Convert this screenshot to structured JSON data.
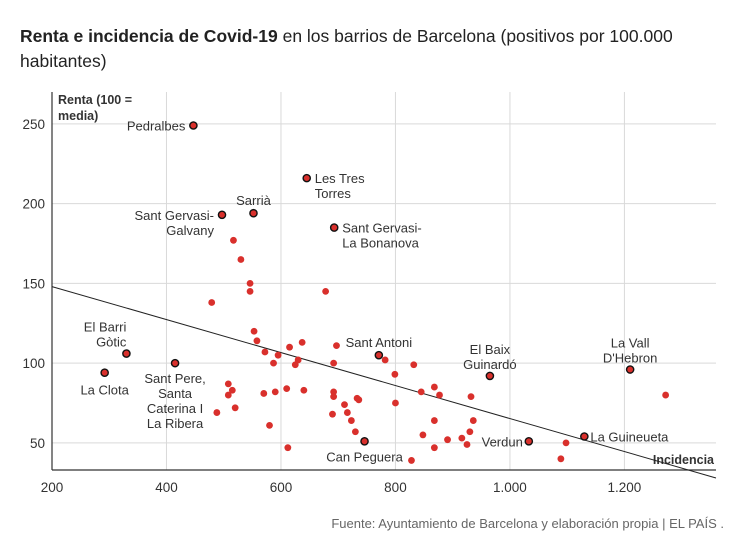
{
  "title_bold": "Renta e incidencia de Covid-19",
  "title_rest": " en los barrios de Barcelona (positivos por 100.000 habitantes)",
  "source": "Fuente: Ayuntamiento de Barcelona y elaboración propia | EL PAÍS .",
  "colors": {
    "point": "#d9302c",
    "grid": "#d9d9d9",
    "trend": "#222222"
  },
  "chart_data": {
    "type": "scatter",
    "xlabel": "Incidencia",
    "ylabel": [
      "Renta (100 =",
      "media)"
    ],
    "xlim": [
      200,
      1360
    ],
    "ylim": [
      33,
      270
    ],
    "xticks": [
      200,
      400,
      600,
      800,
      1000,
      1200
    ],
    "xtick_labels": [
      "200",
      "400",
      "600",
      "800",
      "1.000",
      "1.200"
    ],
    "yticks": [
      50,
      100,
      150,
      200,
      250
    ],
    "yticks_labels": [
      "50",
      "100",
      "150",
      "200",
      "250"
    ],
    "trend_line": {
      "x": [
        200,
        1360
      ],
      "y": [
        148,
        28
      ]
    },
    "labeled_points": [
      {
        "name": [
          "Pedralbes"
        ],
        "x": 447,
        "y": 249,
        "anchor": "end",
        "dx": -8,
        "dy": [
          5
        ]
      },
      {
        "name": [
          "Les Tres",
          "Torres"
        ],
        "x": 645,
        "y": 216,
        "anchor": "start",
        "dx": 8,
        "dy": [
          5,
          20
        ]
      },
      {
        "name": [
          "Sarrià"
        ],
        "x": 552,
        "y": 194,
        "anchor": "middle",
        "dx": 0,
        "dy": [
          -8
        ]
      },
      {
        "name": [
          "Sant Gervasi-",
          "Galvany"
        ],
        "x": 497,
        "y": 193,
        "anchor": "end",
        "dx": -8,
        "dy": [
          5,
          20
        ]
      },
      {
        "name": [
          "Sant Gervasi-",
          "La Bonanova"
        ],
        "x": 693,
        "y": 185,
        "anchor": "start",
        "dx": 8,
        "dy": [
          5,
          20
        ]
      },
      {
        "name": [
          "El Barri",
          "Gòtic"
        ],
        "x": 330,
        "y": 106,
        "anchor": "end",
        "dx": 0,
        "dy": [
          -22,
          -7
        ]
      },
      {
        "name": [
          "La Clota"
        ],
        "x": 292,
        "y": 94,
        "anchor": "middle",
        "dx": 0,
        "dy": [
          22
        ]
      },
      {
        "name": [
          "Sant Pere,",
          "Santa",
          "Caterina I",
          "La Ribera"
        ],
        "x": 415,
        "y": 100,
        "anchor": "middle",
        "dx": 0,
        "dy": [
          20,
          35,
          50,
          65
        ]
      },
      {
        "name": [
          "Sant Antoni"
        ],
        "x": 771,
        "y": 105,
        "anchor": "middle",
        "dx": 0,
        "dy": [
          -8
        ]
      },
      {
        "name": [
          "El Baix",
          "Guinardó"
        ],
        "x": 965,
        "y": 92,
        "anchor": "middle",
        "dx": 0,
        "dy": [
          -22,
          -7
        ]
      },
      {
        "name": [
          "La Vall",
          "D'Hebron"
        ],
        "x": 1210,
        "y": 96,
        "anchor": "middle",
        "dx": 0,
        "dy": [
          -22,
          -7
        ]
      },
      {
        "name": [
          "La Guineueta"
        ],
        "x": 1130,
        "y": 54,
        "anchor": "start",
        "dx": 6,
        "dy": [
          5
        ]
      },
      {
        "name": [
          "Verdun"
        ],
        "x": 1033,
        "y": 51,
        "anchor": "end",
        "dx": -6,
        "dy": [
          5
        ]
      },
      {
        "name": [
          "Can Peguera"
        ],
        "x": 746,
        "y": 51,
        "anchor": "middle",
        "dx": 0,
        "dy": [
          20
        ]
      }
    ],
    "other_points": [
      {
        "x": 479,
        "y": 138
      },
      {
        "x": 517,
        "y": 177
      },
      {
        "x": 530,
        "y": 165
      },
      {
        "x": 546,
        "y": 150
      },
      {
        "x": 546,
        "y": 145
      },
      {
        "x": 678,
        "y": 145
      },
      {
        "x": 553,
        "y": 120
      },
      {
        "x": 558,
        "y": 114
      },
      {
        "x": 572,
        "y": 107
      },
      {
        "x": 587,
        "y": 100
      },
      {
        "x": 595,
        "y": 105
      },
      {
        "x": 615,
        "y": 110
      },
      {
        "x": 625,
        "y": 99
      },
      {
        "x": 630,
        "y": 102
      },
      {
        "x": 637,
        "y": 113
      },
      {
        "x": 697,
        "y": 111
      },
      {
        "x": 692,
        "y": 100
      },
      {
        "x": 508,
        "y": 87
      },
      {
        "x": 515,
        "y": 83
      },
      {
        "x": 508,
        "y": 80
      },
      {
        "x": 570,
        "y": 81
      },
      {
        "x": 590,
        "y": 82
      },
      {
        "x": 610,
        "y": 84
      },
      {
        "x": 640,
        "y": 83
      },
      {
        "x": 520,
        "y": 72
      },
      {
        "x": 488,
        "y": 69
      },
      {
        "x": 580,
        "y": 61
      },
      {
        "x": 612,
        "y": 47
      },
      {
        "x": 692,
        "y": 82
      },
      {
        "x": 692,
        "y": 79
      },
      {
        "x": 711,
        "y": 74
      },
      {
        "x": 716,
        "y": 69
      },
      {
        "x": 733,
        "y": 78
      },
      {
        "x": 736,
        "y": 77
      },
      {
        "x": 690,
        "y": 68
      },
      {
        "x": 723,
        "y": 64
      },
      {
        "x": 730,
        "y": 57
      },
      {
        "x": 782,
        "y": 102
      },
      {
        "x": 799,
        "y": 93
      },
      {
        "x": 832,
        "y": 99
      },
      {
        "x": 868,
        "y": 85
      },
      {
        "x": 877,
        "y": 80
      },
      {
        "x": 845,
        "y": 82
      },
      {
        "x": 800,
        "y": 75
      },
      {
        "x": 868,
        "y": 64
      },
      {
        "x": 848,
        "y": 55
      },
      {
        "x": 891,
        "y": 52
      },
      {
        "x": 916,
        "y": 53
      },
      {
        "x": 925,
        "y": 49
      },
      {
        "x": 930,
        "y": 57
      },
      {
        "x": 936,
        "y": 64
      },
      {
        "x": 932,
        "y": 79
      },
      {
        "x": 868,
        "y": 47
      },
      {
        "x": 828,
        "y": 39
      },
      {
        "x": 1098,
        "y": 50
      },
      {
        "x": 1089,
        "y": 40
      },
      {
        "x": 1272,
        "y": 80
      }
    ]
  }
}
